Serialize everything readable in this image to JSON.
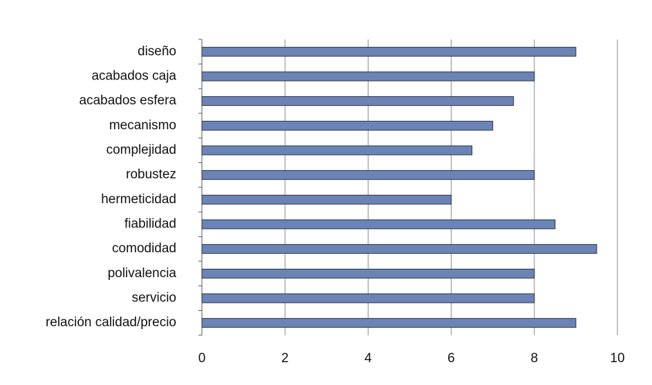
{
  "chart_data": {
    "type": "bar",
    "orientation": "horizontal",
    "categories": [
      "diseño",
      "acabados caja",
      "acabados esfera",
      "mecanismo",
      "complejidad",
      "robustez",
      "hermeticidad",
      "fiabilidad",
      "comodidad",
      "polivalencia",
      "servicio",
      "relación calidad/precio"
    ],
    "values": [
      9,
      8,
      7.5,
      7,
      6.5,
      8,
      6,
      8.5,
      9.5,
      8,
      8,
      9
    ],
    "color": "#6b84b5",
    "xlim": [
      0,
      10
    ],
    "xticks": [
      0,
      2,
      4,
      6,
      8,
      10
    ],
    "grid": true
  }
}
